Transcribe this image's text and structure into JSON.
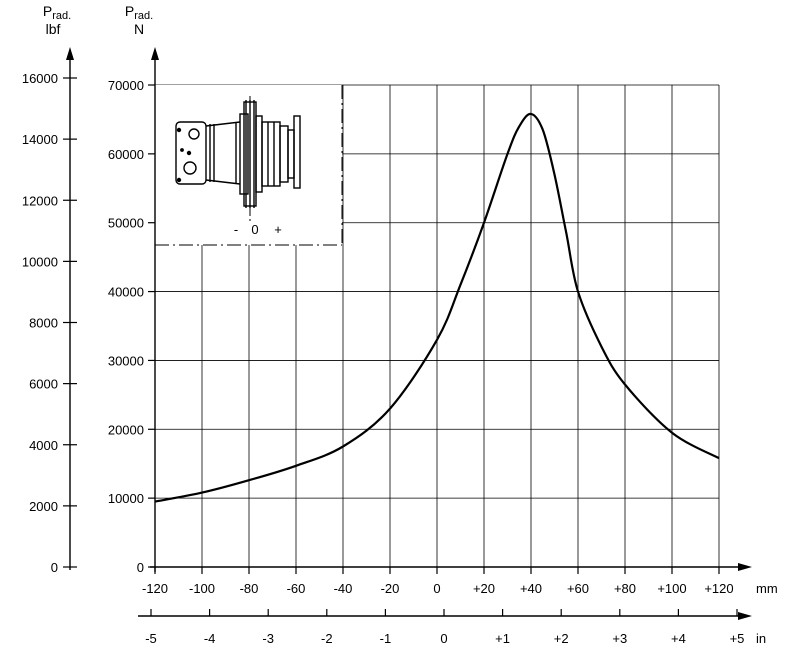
{
  "chart_data": {
    "type": "line",
    "y_left": {
      "name": "P",
      "subscript": "rad.",
      "unit": "lbf",
      "ticks": [
        0,
        2000,
        4000,
        6000,
        8000,
        10000,
        12000,
        14000,
        16000
      ],
      "tick_labels": [
        "0",
        "2000",
        "4000",
        "6000",
        "8000",
        "10000",
        "12000",
        "14000",
        "16000"
      ]
    },
    "y_right": {
      "name": "P",
      "subscript": "rad.",
      "unit": "N",
      "ylim": [
        0,
        70000
      ],
      "ticks": [
        0,
        10000,
        20000,
        30000,
        40000,
        50000,
        60000,
        70000
      ],
      "tick_labels": [
        "0",
        "10000",
        "20000",
        "30000",
        "40000",
        "50000",
        "60000",
        "70000"
      ]
    },
    "x_mm": {
      "unit": "mm",
      "xlim": [
        -120,
        120
      ],
      "ticks": [
        -120,
        -100,
        -80,
        -60,
        -40,
        -20,
        0,
        20,
        40,
        60,
        80,
        100,
        120
      ],
      "tick_labels": [
        "-120",
        "-100",
        "-80",
        "-60",
        "-40",
        "-20",
        "0",
        "+20",
        "+40",
        "+60",
        "+80",
        "+100",
        "+120"
      ]
    },
    "x_in": {
      "unit": "in",
      "ticks": [
        -5,
        -4,
        -3,
        -2,
        -1,
        0,
        1,
        2,
        3,
        4,
        5
      ],
      "tick_labels": [
        "-5",
        "-4",
        "-3",
        "-2",
        "-1",
        "0",
        "+1",
        "+2",
        "+3",
        "+4",
        "+5"
      ]
    },
    "series": [
      {
        "x": [
          -120,
          -100,
          -80,
          -60,
          -40,
          -20,
          0,
          10,
          20,
          30,
          35,
          40,
          45,
          50,
          55,
          60,
          70,
          80,
          100,
          120
        ],
        "y": [
          9500,
          10800,
          12600,
          14700,
          17500,
          23000,
          33000,
          41000,
          50000,
          60000,
          64000,
          65800,
          63500,
          57000,
          48500,
          40000,
          32000,
          26500,
          19500,
          15800
        ]
      }
    ],
    "grid": true,
    "inset_labels": [
      "-",
      "0",
      "+"
    ]
  }
}
